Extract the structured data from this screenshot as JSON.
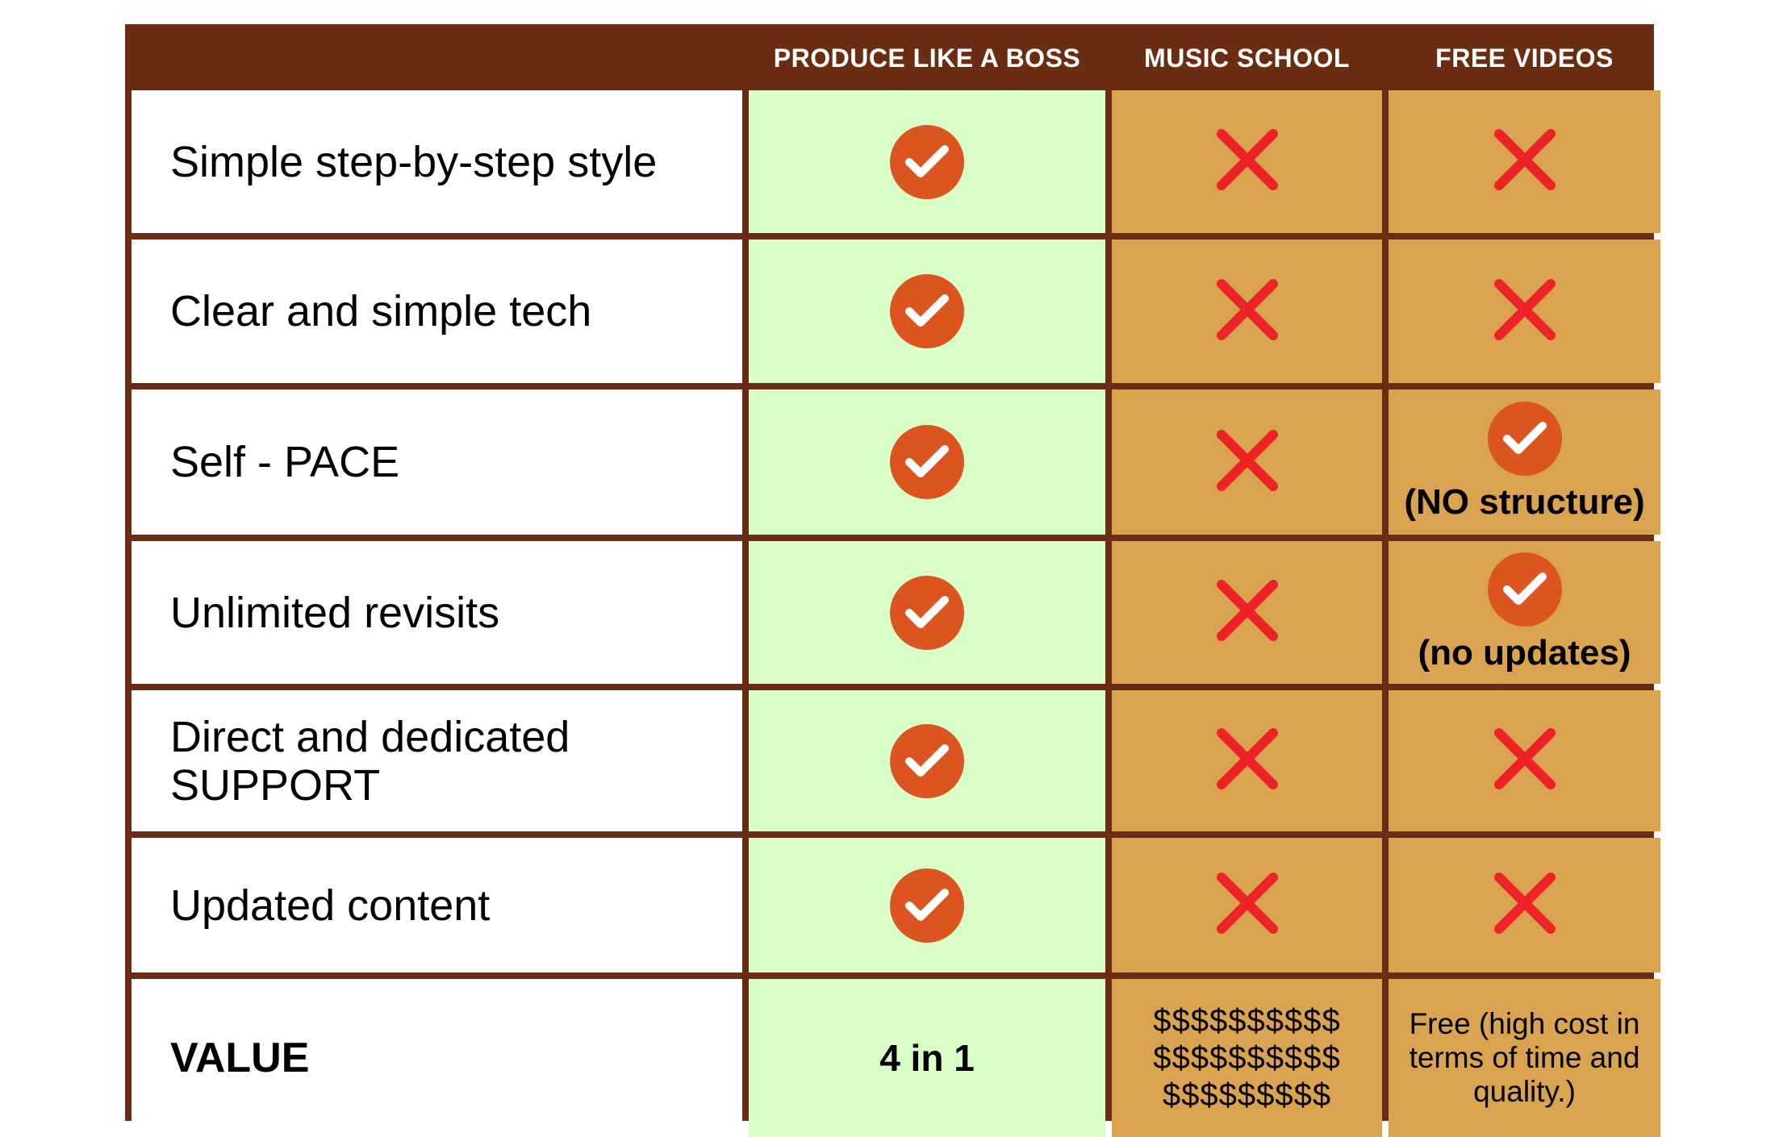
{
  "columns": [
    "",
    "PRODUCE LIKE A BOSS",
    "MUSIC SCHOOL",
    "FREE VIDEOS"
  ],
  "rows": [
    {
      "feature": "Simple step-by-step style",
      "plab": "check",
      "music": "cross",
      "free": "cross",
      "free_note": ""
    },
    {
      "feature": "Clear and simple tech",
      "plab": "check",
      "music": "cross",
      "free": "cross",
      "free_note": ""
    },
    {
      "feature": "Self - PACE",
      "plab": "check",
      "music": "cross",
      "free": "check",
      "free_note": "(NO structure)"
    },
    {
      "feature": "Unlimited revisits",
      "plab": "check",
      "music": "cross",
      "free": "check",
      "free_note": "(no updates)"
    },
    {
      "feature": "Direct and dedicated SUPPORT",
      "plab": "check",
      "music": "cross",
      "free": "cross",
      "free_note": ""
    },
    {
      "feature": "Updated content",
      "plab": "check",
      "music": "cross",
      "free": "cross",
      "free_note": ""
    }
  ],
  "value_row": {
    "feature": "VALUE",
    "plab": "4 in 1",
    "music": [
      "$$$$$$$$$$",
      "$$$$$$$$$$",
      "$$$$$$$$$"
    ],
    "free": "Free (high cost in terms of time and quality.)"
  },
  "colors": {
    "border": "#6a2d14",
    "plab_bg": "#d9fdc7",
    "other_bg": "#d9a34f",
    "check": "#dc5520",
    "cross": "#ec2227"
  }
}
